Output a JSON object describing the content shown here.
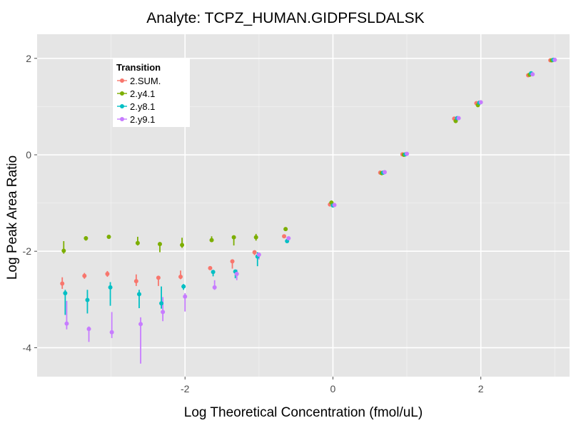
{
  "chart_data": {
    "type": "scatter",
    "title": "Analyte: TCPZ_HUMAN.GIDPFSLDALSK",
    "xlabel": "Log Theoretical Concentration (fmol/uL)",
    "ylabel": "Log Peak Area Ratio",
    "xlim": [
      -4.0,
      3.2
    ],
    "ylim": [
      -4.6,
      2.5
    ],
    "xticks": [
      -2,
      0,
      2
    ],
    "xtick_labels": [
      "-2",
      "0",
      "2"
    ],
    "yticks": [
      -4,
      -2,
      0,
      2
    ],
    "ytick_labels": [
      "-4",
      "-2",
      "0",
      "2"
    ],
    "grid": true,
    "error_bars": true,
    "legend": {
      "title": "Transition",
      "placement": "top-left"
    },
    "series": [
      {
        "name": "2.SUM.",
        "color": "#F8766D",
        "points": [
          {
            "x": -3.66,
            "y": -2.67,
            "ylo": -2.78,
            "yhi": -2.54
          },
          {
            "x": -3.36,
            "y": -2.51,
            "ylo": -2.57,
            "yhi": -2.45
          },
          {
            "x": -3.05,
            "y": -2.47,
            "ylo": -2.53,
            "yhi": -2.41
          },
          {
            "x": -2.66,
            "y": -2.62,
            "ylo": -2.72,
            "yhi": -2.48
          },
          {
            "x": -2.36,
            "y": -2.55,
            "ylo": -2.72,
            "yhi": -2.52
          },
          {
            "x": -2.06,
            "y": -2.53,
            "ylo": -2.58,
            "yhi": -2.4
          },
          {
            "x": -1.66,
            "y": -2.35,
            "ylo": -2.38,
            "yhi": -2.32
          },
          {
            "x": -1.36,
            "y": -2.21,
            "ylo": -2.36,
            "yhi": -2.19
          },
          {
            "x": -1.06,
            "y": -2.02,
            "ylo": -2.08,
            "yhi": -1.98
          },
          {
            "x": -0.66,
            "y": -1.69,
            "ylo": -1.72,
            "yhi": -1.67
          },
          {
            "x": -0.04,
            "y": -1.03,
            "ylo": -1.05,
            "yhi": -1.01
          },
          {
            "x": 0.64,
            "y": -0.37,
            "ylo": -0.39,
            "yhi": -0.35
          },
          {
            "x": 0.94,
            "y": 0.01,
            "ylo": -0.01,
            "yhi": 0.03
          },
          {
            "x": 1.64,
            "y": 0.75,
            "ylo": 0.73,
            "yhi": 0.77
          },
          {
            "x": 1.94,
            "y": 1.07,
            "ylo": 1.05,
            "yhi": 1.09
          },
          {
            "x": 2.64,
            "y": 1.65,
            "ylo": 1.63,
            "yhi": 1.67
          },
          {
            "x": 2.94,
            "y": 1.96,
            "ylo": 1.94,
            "yhi": 1.98
          }
        ]
      },
      {
        "name": "2.y4.1",
        "color": "#7CAE00",
        "points": [
          {
            "x": -3.64,
            "y": -1.99,
            "ylo": -2.05,
            "yhi": -1.79
          },
          {
            "x": -3.34,
            "y": -1.73,
            "ylo": -1.78,
            "yhi": -1.69
          },
          {
            "x": -3.03,
            "y": -1.7,
            "ylo": -1.73,
            "yhi": -1.67
          },
          {
            "x": -2.64,
            "y": -1.83,
            "ylo": -1.88,
            "yhi": -1.7
          },
          {
            "x": -2.34,
            "y": -1.85,
            "ylo": -2.02,
            "yhi": -1.83
          },
          {
            "x": -2.04,
            "y": -1.87,
            "ylo": -1.93,
            "yhi": -1.72
          },
          {
            "x": -1.64,
            "y": -1.77,
            "ylo": -1.8,
            "yhi": -1.69
          },
          {
            "x": -1.34,
            "y": -1.71,
            "ylo": -1.88,
            "yhi": -1.68
          },
          {
            "x": -1.04,
            "y": -1.71,
            "ylo": -1.78,
            "yhi": -1.64
          },
          {
            "x": -0.64,
            "y": -1.54,
            "ylo": -1.58,
            "yhi": -1.51
          },
          {
            "x": -0.02,
            "y": -0.99,
            "ylo": -1.02,
            "yhi": -0.97
          },
          {
            "x": 0.66,
            "y": -0.38,
            "ylo": -0.4,
            "yhi": -0.36
          },
          {
            "x": 0.96,
            "y": 0.0,
            "ylo": -0.02,
            "yhi": 0.02
          },
          {
            "x": 1.66,
            "y": 0.7,
            "ylo": 0.66,
            "yhi": 0.74
          },
          {
            "x": 1.96,
            "y": 1.03,
            "ylo": 0.99,
            "yhi": 1.07
          },
          {
            "x": 2.66,
            "y": 1.66,
            "ylo": 1.64,
            "yhi": 1.68
          },
          {
            "x": 2.96,
            "y": 1.96,
            "ylo": 1.94,
            "yhi": 1.98
          }
        ]
      },
      {
        "name": "2.y8.1",
        "color": "#00BFC4",
        "points": [
          {
            "x": -3.62,
            "y": -2.87,
            "ylo": -3.32,
            "yhi": -2.8
          },
          {
            "x": -3.32,
            "y": -3.01,
            "ylo": -3.29,
            "yhi": -2.8
          },
          {
            "x": -3.01,
            "y": -2.75,
            "ylo": -3.13,
            "yhi": -2.64
          },
          {
            "x": -2.62,
            "y": -2.89,
            "ylo": -3.18,
            "yhi": -2.8
          },
          {
            "x": -2.32,
            "y": -3.08,
            "ylo": -3.19,
            "yhi": -2.73
          },
          {
            "x": -2.02,
            "y": -2.73,
            "ylo": -2.8,
            "yhi": -2.68
          },
          {
            "x": -1.62,
            "y": -2.43,
            "ylo": -2.52,
            "yhi": -2.4
          },
          {
            "x": -1.32,
            "y": -2.42,
            "ylo": -2.56,
            "yhi": -2.4
          },
          {
            "x": -1.02,
            "y": -2.11,
            "ylo": -2.31,
            "yhi": -2.02
          },
          {
            "x": -0.62,
            "y": -1.79,
            "ylo": -1.82,
            "yhi": -1.76
          },
          {
            "x": 0.0,
            "y": -1.05,
            "ylo": -1.07,
            "yhi": -1.03
          },
          {
            "x": 0.68,
            "y": -0.37,
            "ylo": -0.39,
            "yhi": -0.35
          },
          {
            "x": 0.98,
            "y": 0.01,
            "ylo": -0.01,
            "yhi": 0.03
          },
          {
            "x": 1.68,
            "y": 0.76,
            "ylo": 0.74,
            "yhi": 0.78
          },
          {
            "x": 1.98,
            "y": 1.08,
            "ylo": 1.06,
            "yhi": 1.1
          },
          {
            "x": 2.68,
            "y": 1.69,
            "ylo": 1.67,
            "yhi": 1.71
          },
          {
            "x": 2.98,
            "y": 1.97,
            "ylo": 1.95,
            "yhi": 1.99
          }
        ]
      },
      {
        "name": "2.y9.1",
        "color": "#C77CFF",
        "points": [
          {
            "x": -3.6,
            "y": -3.5,
            "ylo": -3.62,
            "yhi": -3.03
          },
          {
            "x": -3.3,
            "y": -3.61,
            "ylo": -3.88,
            "yhi": -3.56
          },
          {
            "x": -2.99,
            "y": -3.68,
            "ylo": -3.8,
            "yhi": -3.26
          },
          {
            "x": -2.6,
            "y": -3.51,
            "ylo": -4.33,
            "yhi": -3.37
          },
          {
            "x": -2.3,
            "y": -3.26,
            "ylo": -3.45,
            "yhi": -2.95
          },
          {
            "x": -2.0,
            "y": -2.94,
            "ylo": -3.25,
            "yhi": -2.87
          },
          {
            "x": -1.6,
            "y": -2.75,
            "ylo": -2.8,
            "yhi": -2.6
          },
          {
            "x": -1.3,
            "y": -2.47,
            "ylo": -2.6,
            "yhi": -2.38
          },
          {
            "x": -1.0,
            "y": -2.07,
            "ylo": -2.17,
            "yhi": -2.03
          },
          {
            "x": -0.6,
            "y": -1.73,
            "ylo": -1.75,
            "yhi": -1.7
          },
          {
            "x": 0.02,
            "y": -1.04,
            "ylo": -1.06,
            "yhi": -1.02
          },
          {
            "x": 0.7,
            "y": -0.36,
            "ylo": -0.38,
            "yhi": -0.34
          },
          {
            "x": 1.0,
            "y": 0.02,
            "ylo": 0.0,
            "yhi": 0.04
          },
          {
            "x": 1.7,
            "y": 0.76,
            "ylo": 0.74,
            "yhi": 0.78
          },
          {
            "x": 2.0,
            "y": 1.09,
            "ylo": 1.07,
            "yhi": 1.11
          },
          {
            "x": 2.7,
            "y": 1.67,
            "ylo": 1.65,
            "yhi": 1.69
          },
          {
            "x": 3.0,
            "y": 1.97,
            "ylo": 1.95,
            "yhi": 1.99
          }
        ]
      }
    ]
  }
}
